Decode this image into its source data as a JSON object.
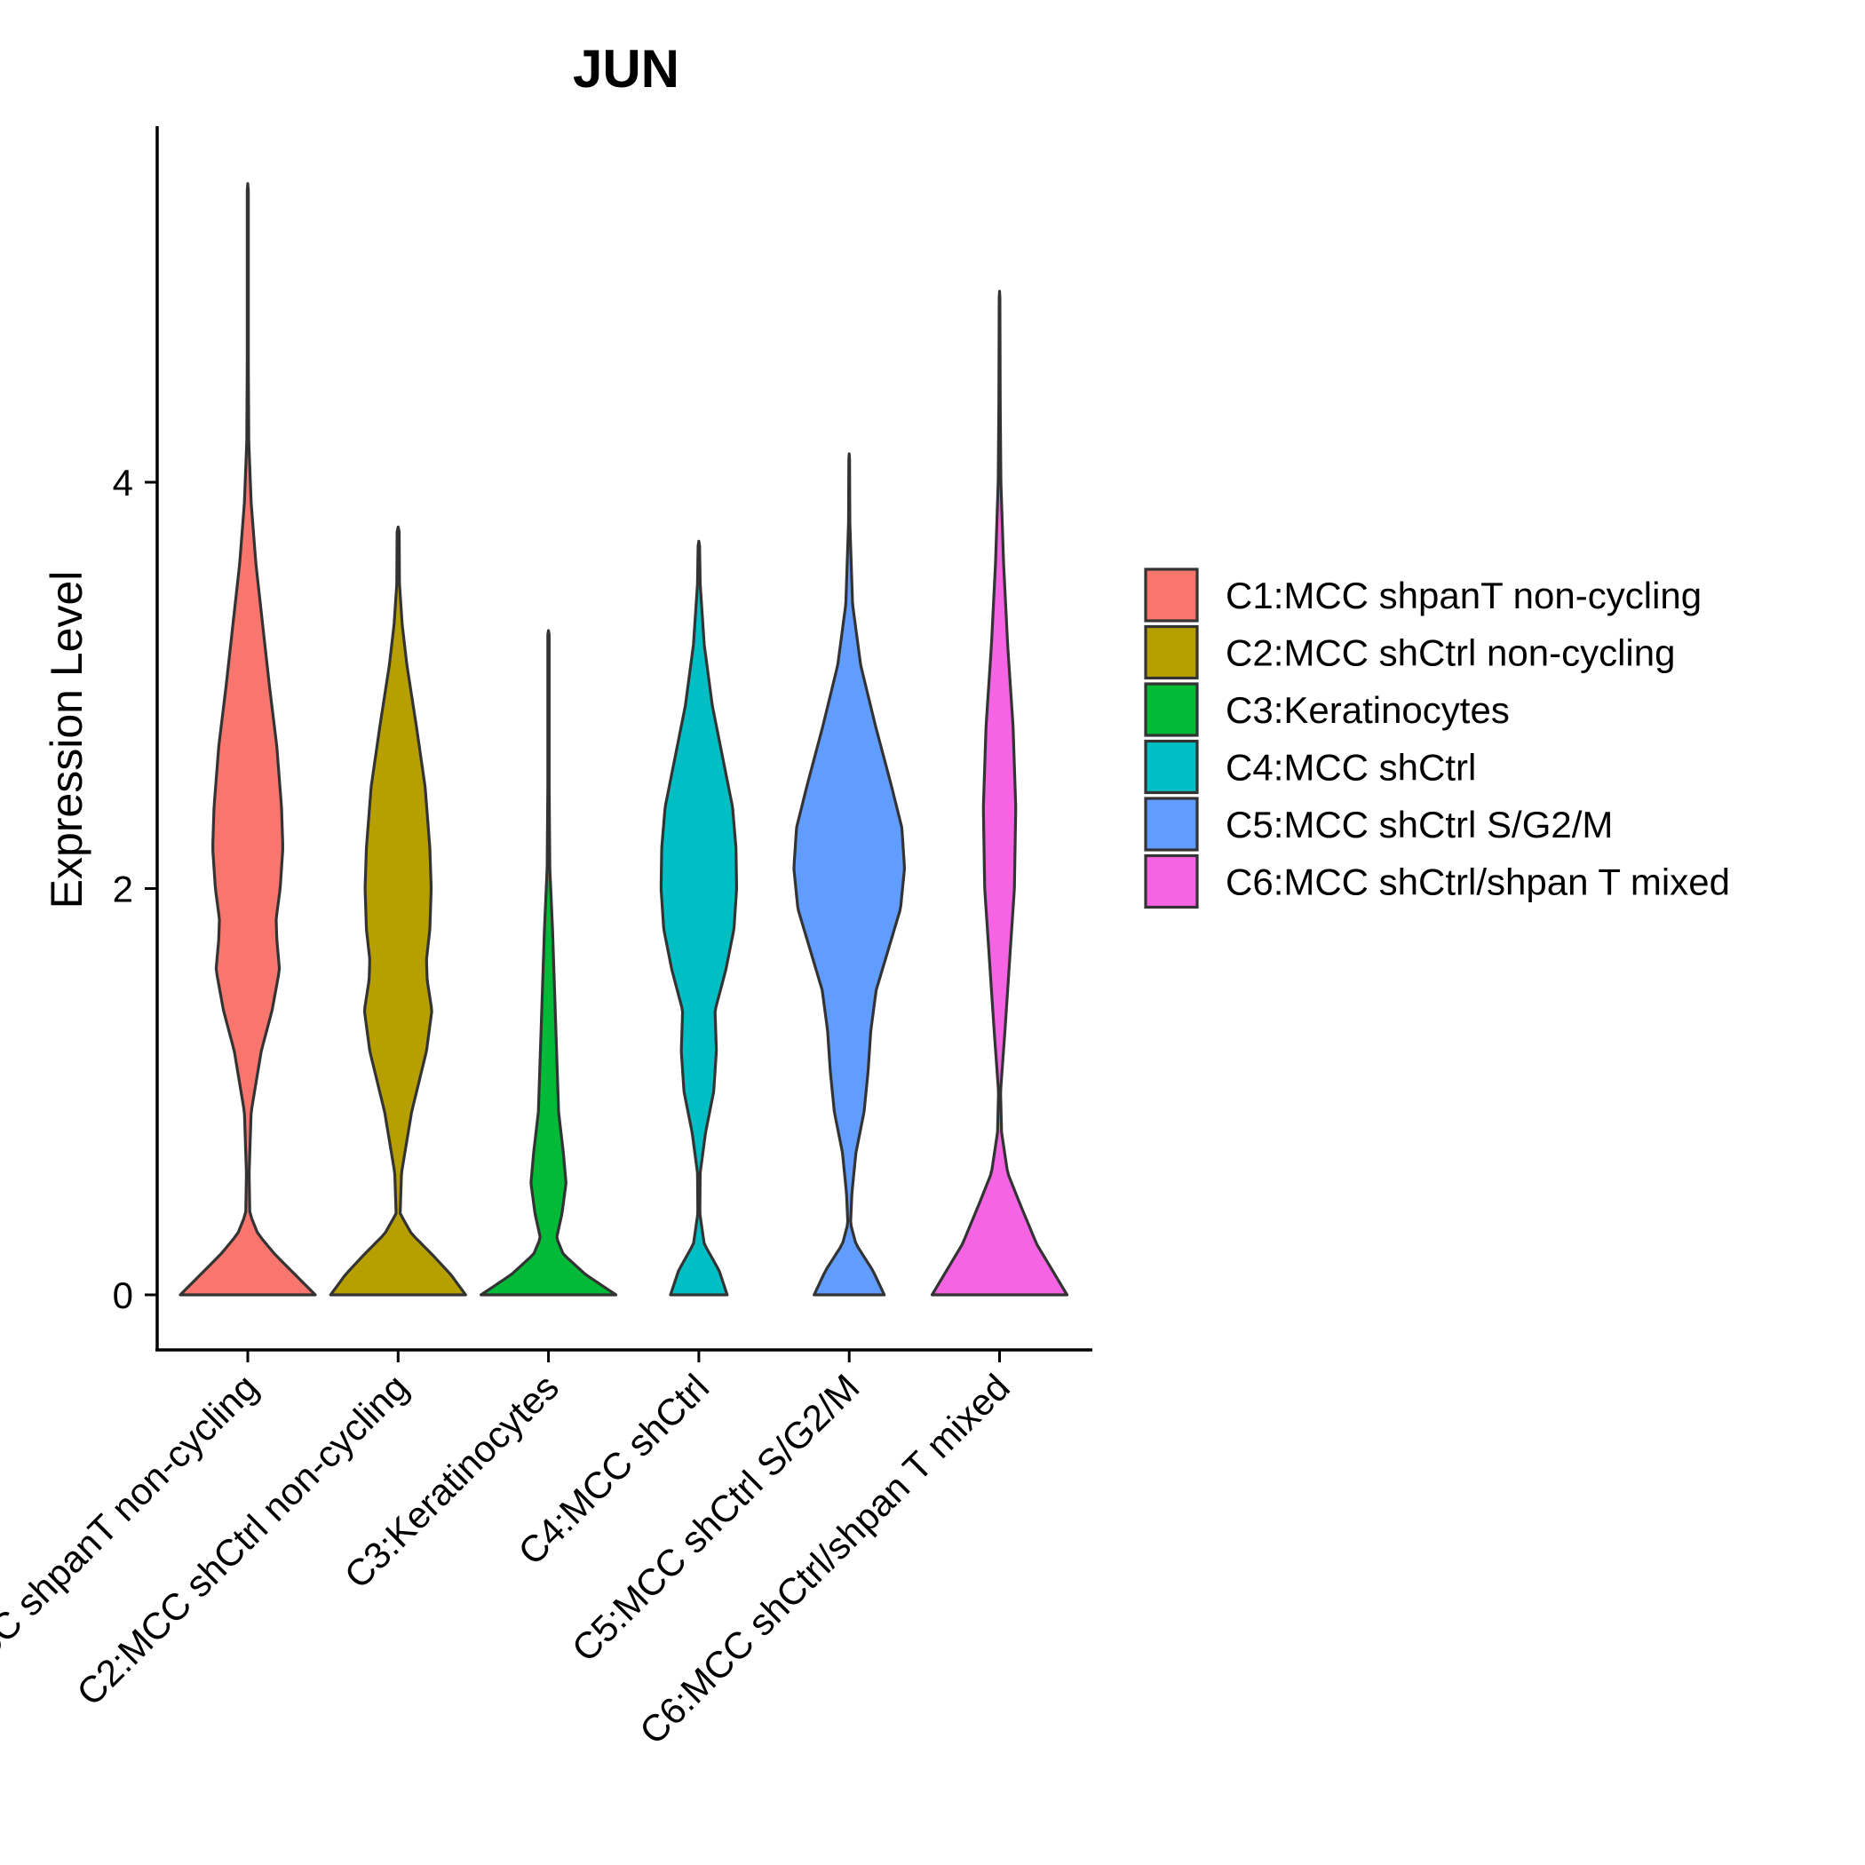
{
  "chart_data": {
    "type": "violin",
    "title": "JUN",
    "xlabel": "",
    "ylabel": "Expression Level",
    "ylim": [
      -0.27,
      5.75
    ],
    "yticks": [
      0,
      2,
      4
    ],
    "ytick_labels": [
      "0",
      "2",
      "4"
    ],
    "legend_position": "right",
    "categories": [
      "C1:MCC shpanT non-cycling",
      "C2:MCC shCtrl non-cycling",
      "C3:Keratinocytes",
      "C4:MCC shCtrl",
      "C5:MCC shCtrl S/G2/M",
      "C6:MCC shCtrl/shpan T mixed"
    ],
    "colors": [
      "#F8766D",
      "#B79F00",
      "#00BA38",
      "#00BFC4",
      "#619CFF",
      "#F564E3"
    ],
    "series": [
      {
        "name": "C1:MCC shpanT non-cycling",
        "max": 5.47,
        "density": [
          [
            0,
            1.0
          ],
          [
            0.1,
            0.7
          ],
          [
            0.2,
            0.4
          ],
          [
            0.3,
            0.15
          ],
          [
            0.4,
            0.03
          ],
          [
            0.6,
            0.02
          ],
          [
            0.9,
            0.05
          ],
          [
            1.2,
            0.2
          ],
          [
            1.4,
            0.36
          ],
          [
            1.6,
            0.47
          ],
          [
            1.75,
            0.43
          ],
          [
            1.85,
            0.42
          ],
          [
            2.0,
            0.48
          ],
          [
            2.2,
            0.52
          ],
          [
            2.4,
            0.5
          ],
          [
            2.7,
            0.43
          ],
          [
            3.0,
            0.32
          ],
          [
            3.3,
            0.22
          ],
          [
            3.6,
            0.12
          ],
          [
            3.9,
            0.05
          ],
          [
            4.2,
            0.015
          ],
          [
            4.6,
            0.008
          ],
          [
            5.47,
            0.008
          ]
        ]
      },
      {
        "name": "C2:MCC shCtrl non-cycling",
        "max": 3.78,
        "density": [
          [
            0,
            1.0
          ],
          [
            0.1,
            0.78
          ],
          [
            0.2,
            0.5
          ],
          [
            0.3,
            0.2
          ],
          [
            0.4,
            0.03
          ],
          [
            0.6,
            0.05
          ],
          [
            0.9,
            0.2
          ],
          [
            1.2,
            0.42
          ],
          [
            1.4,
            0.5
          ],
          [
            1.55,
            0.43
          ],
          [
            1.65,
            0.42
          ],
          [
            1.8,
            0.47
          ],
          [
            2.0,
            0.49
          ],
          [
            2.2,
            0.47
          ],
          [
            2.5,
            0.4
          ],
          [
            2.8,
            0.27
          ],
          [
            3.1,
            0.13
          ],
          [
            3.3,
            0.06
          ],
          [
            3.5,
            0.02
          ],
          [
            3.78,
            0.015
          ]
        ]
      },
      {
        "name": "C3:Keratinocytes",
        "max": 3.27,
        "density": [
          [
            0,
            1.0
          ],
          [
            0.1,
            0.55
          ],
          [
            0.2,
            0.22
          ],
          [
            0.28,
            0.12
          ],
          [
            0.4,
            0.2
          ],
          [
            0.55,
            0.26
          ],
          [
            0.7,
            0.22
          ],
          [
            0.9,
            0.15
          ],
          [
            1.2,
            0.12
          ],
          [
            1.5,
            0.09
          ],
          [
            1.8,
            0.06
          ],
          [
            2.1,
            0.02
          ],
          [
            2.5,
            0.01
          ],
          [
            3.27,
            0.01
          ]
        ]
      },
      {
        "name": "C4:MCC shCtrl",
        "max": 3.71,
        "density": [
          [
            0,
            0.42
          ],
          [
            0.12,
            0.3
          ],
          [
            0.25,
            0.08
          ],
          [
            0.4,
            0.015
          ],
          [
            0.6,
            0.02
          ],
          [
            0.8,
            0.1
          ],
          [
            1.0,
            0.22
          ],
          [
            1.2,
            0.26
          ],
          [
            1.4,
            0.24
          ],
          [
            1.6,
            0.4
          ],
          [
            1.8,
            0.52
          ],
          [
            2.0,
            0.56
          ],
          [
            2.2,
            0.55
          ],
          [
            2.4,
            0.5
          ],
          [
            2.6,
            0.38
          ],
          [
            2.9,
            0.2
          ],
          [
            3.2,
            0.08
          ],
          [
            3.5,
            0.02
          ],
          [
            3.71,
            0.01
          ]
        ]
      },
      {
        "name": "C5:MCC shCtrl S/G2/M",
        "max": 4.14,
        "density": [
          [
            0,
            0.52
          ],
          [
            0.12,
            0.35
          ],
          [
            0.25,
            0.1
          ],
          [
            0.35,
            0.02
          ],
          [
            0.5,
            0.04
          ],
          [
            0.7,
            0.1
          ],
          [
            0.9,
            0.22
          ],
          [
            1.1,
            0.28
          ],
          [
            1.3,
            0.32
          ],
          [
            1.5,
            0.4
          ],
          [
            1.7,
            0.58
          ],
          [
            1.9,
            0.76
          ],
          [
            2.1,
            0.82
          ],
          [
            2.3,
            0.78
          ],
          [
            2.5,
            0.63
          ],
          [
            2.8,
            0.39
          ],
          [
            3.1,
            0.17
          ],
          [
            3.4,
            0.05
          ],
          [
            3.8,
            0.01
          ],
          [
            4.14,
            0.005
          ]
        ]
      },
      {
        "name": "C6:MCC shCtrl/shpan T mixed",
        "max": 4.94,
        "density": [
          [
            0,
            1.0
          ],
          [
            0.1,
            0.82
          ],
          [
            0.25,
            0.55
          ],
          [
            0.45,
            0.3
          ],
          [
            0.6,
            0.12
          ],
          [
            0.8,
            0.03
          ],
          [
            1.0,
            0.015
          ],
          [
            1.3,
            0.08
          ],
          [
            1.6,
            0.14
          ],
          [
            2.0,
            0.22
          ],
          [
            2.4,
            0.24
          ],
          [
            2.8,
            0.2
          ],
          [
            3.2,
            0.12
          ],
          [
            3.6,
            0.06
          ],
          [
            4.0,
            0.02
          ],
          [
            4.4,
            0.01
          ],
          [
            4.94,
            0.005
          ]
        ]
      }
    ]
  }
}
